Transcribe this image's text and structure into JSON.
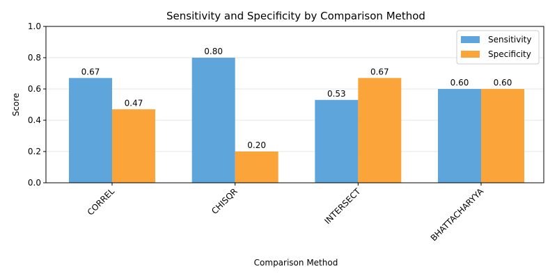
{
  "chart_data": {
    "type": "bar",
    "title": "Sensitivity and Specificity by Comparison Method",
    "xlabel": "Comparison Method",
    "ylabel": "Score",
    "ylim": [
      0,
      1.0
    ],
    "yticks": [
      "0.0",
      "0.2",
      "0.4",
      "0.6",
      "0.8",
      "1.0"
    ],
    "categories": [
      "CORREL",
      "CHISQR",
      "INTERSECT",
      "BHATTACHARYYA"
    ],
    "series": [
      {
        "name": "Sensitivity",
        "color": "#5DA5DA",
        "values": [
          0.67,
          0.8,
          0.53,
          0.6
        ],
        "labels": [
          "0.67",
          "0.80",
          "0.53",
          "0.60"
        ]
      },
      {
        "name": "Specificity",
        "color": "#FAA43A",
        "values": [
          0.47,
          0.2,
          0.67,
          0.6
        ],
        "labels": [
          "0.47",
          "0.20",
          "0.67",
          "0.60"
        ]
      }
    ],
    "grid": "horizontal",
    "legend_position": "top-right"
  }
}
